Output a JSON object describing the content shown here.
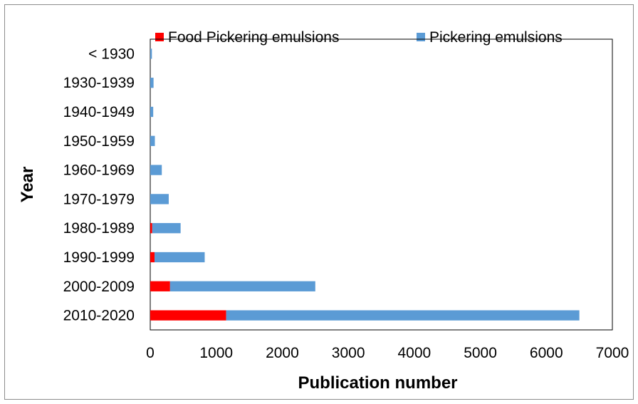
{
  "chart_data": {
    "type": "bar",
    "orientation": "horizontal",
    "stacked": true,
    "categories": [
      "< 1930",
      "1930-1939",
      "1940-1949",
      "1950-1959",
      "1960-1969",
      "1970-1979",
      "1980-1989",
      "1990-1999",
      "2000-2009",
      "2010-2020"
    ],
    "series": [
      {
        "name": "Food Pickering emulsions",
        "color": "#ff0000",
        "values": [
          0,
          0,
          0,
          0,
          0,
          0,
          30,
          65,
          300,
          1150
        ]
      },
      {
        "name": "Pickering emulsions",
        "color": "#5b9bd5",
        "values": [
          25,
          50,
          45,
          70,
          175,
          280,
          430,
          760,
          2200,
          5350
        ]
      }
    ],
    "xlabel": "Publication number",
    "ylabel": "Year",
    "xlim": [
      0,
      7000
    ],
    "xticks": [
      "0",
      "1000",
      "2000",
      "3000",
      "4000",
      "5000",
      "6000",
      "7000"
    ],
    "grid": false,
    "legend_position": "top"
  }
}
